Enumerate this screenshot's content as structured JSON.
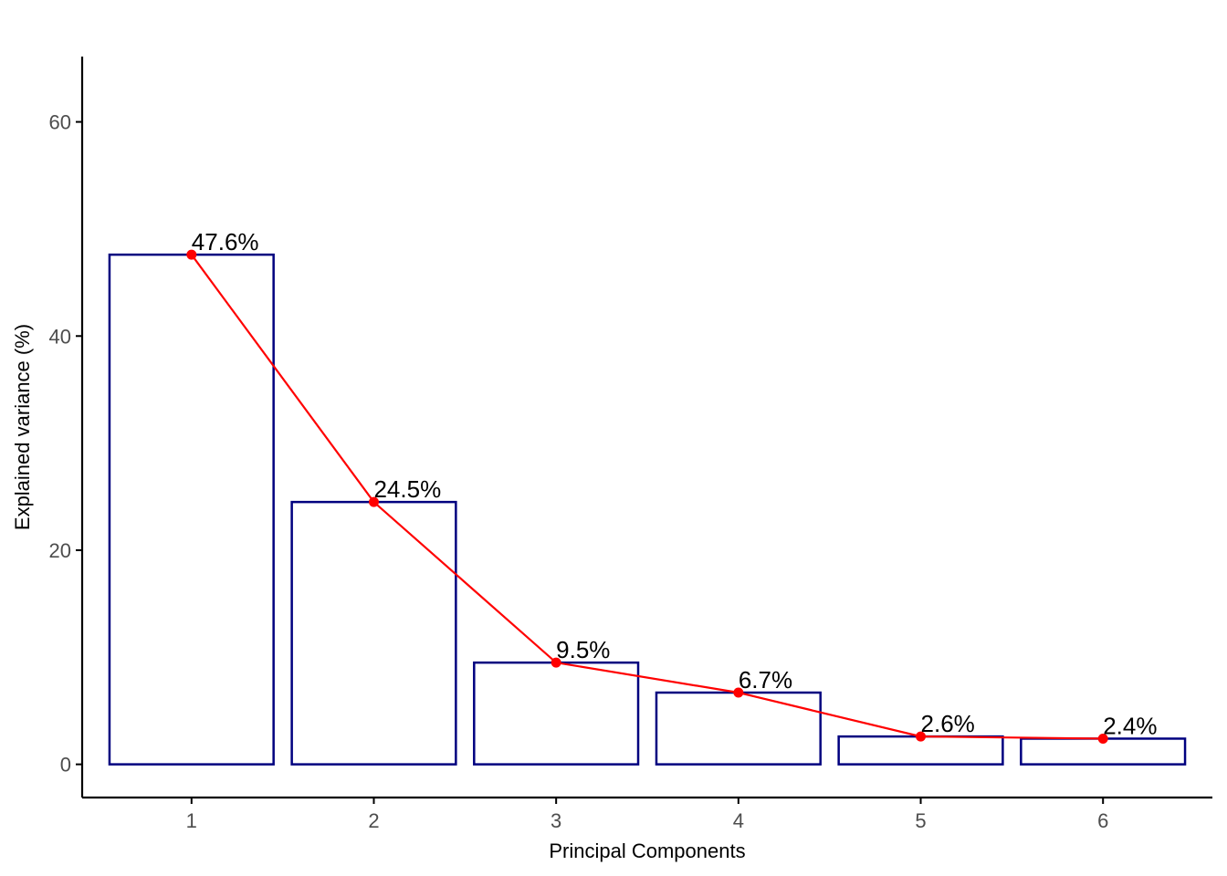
{
  "chart_data": {
    "type": "bar",
    "categories": [
      "1",
      "2",
      "3",
      "4",
      "5",
      "6"
    ],
    "values": [
      47.6,
      24.5,
      9.5,
      6.7,
      2.6,
      2.4
    ],
    "data_labels": [
      "47.6%",
      "24.5%",
      "9.5%",
      "6.7%",
      "2.6%",
      "2.4%"
    ],
    "line_overlay": true,
    "xlabel": "Principal Components",
    "ylabel": "Explained variance (%)",
    "yticks": [
      0,
      20,
      40,
      60
    ],
    "ytick_labels": [
      "0",
      "20",
      "40",
      "60"
    ],
    "ylim": [
      -3.1,
      66.1
    ],
    "grid": false,
    "colors": {
      "bar_outline": "#00007F",
      "bar_fill": "#FFFFFF",
      "line": "#FF0000",
      "axis": "#000000",
      "tick_text": "#4D4D4D"
    }
  }
}
